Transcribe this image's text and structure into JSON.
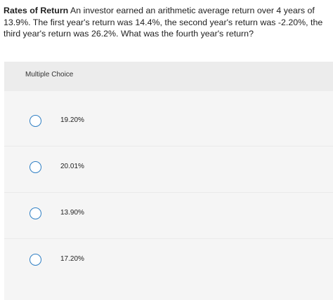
{
  "question": {
    "title": "Rates of Return",
    "text": " An investor earned an arithmetic average return over 4 years of 13.9%. The first year's return was 14.4%, the second year's return was -2.20%, the third year's return was 26.2%. What was the fourth year's return?"
  },
  "panel": {
    "header": "Multiple Choice",
    "options": [
      {
        "label": "19.20%"
      },
      {
        "label": "20.01%"
      },
      {
        "label": "13.90%"
      },
      {
        "label": "17.20%"
      }
    ]
  },
  "colors": {
    "radio_border": "#2f7fc4",
    "panel_bg": "#f5f5f5",
    "header_bg": "#ececec"
  }
}
